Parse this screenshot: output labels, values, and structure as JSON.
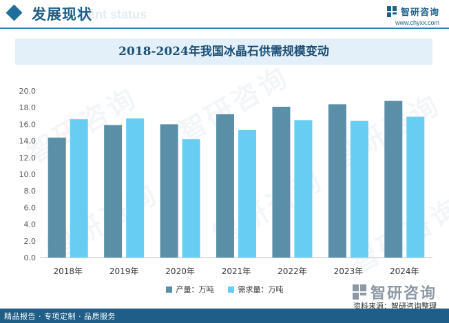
{
  "header": {
    "title": "发展现状",
    "ghost_text": "ment status",
    "brand_name": "智研咨询",
    "brand_url": "www.chyxx.com"
  },
  "chart_data": {
    "type": "bar",
    "title": "2018-2024年我国冰晶石供需规模变动",
    "categories": [
      "2018年",
      "2019年",
      "2020年",
      "2021年",
      "2022年",
      "2023年",
      "2024年"
    ],
    "series": [
      {
        "name": "产量：万吨",
        "color": "#5b8fa8",
        "values": [
          14.4,
          15.9,
          16.0,
          17.2,
          18.1,
          18.4,
          18.8
        ]
      },
      {
        "name": "需求量：万吨",
        "color": "#67cdf2",
        "values": [
          16.6,
          16.7,
          14.2,
          15.3,
          16.5,
          16.4,
          16.9
        ]
      }
    ],
    "ylim": [
      0,
      20
    ],
    "yticks": [
      "0.0",
      "2.0",
      "4.0",
      "6.0",
      "8.0",
      "10.0",
      "12.0",
      "14.0",
      "16.0",
      "18.0",
      "20.0"
    ],
    "grid": false,
    "legend": "bottom"
  },
  "watermark": "智研咨询",
  "footer": {
    "logo_text": "智研咨询",
    "source": "资料来源：智研咨询整理",
    "tagline": "精品报告 · 专项定制 · 品质服务"
  },
  "colors": {
    "accent": "#1f5e86",
    "production": "#5b8fa8",
    "demand": "#67cdf2"
  }
}
